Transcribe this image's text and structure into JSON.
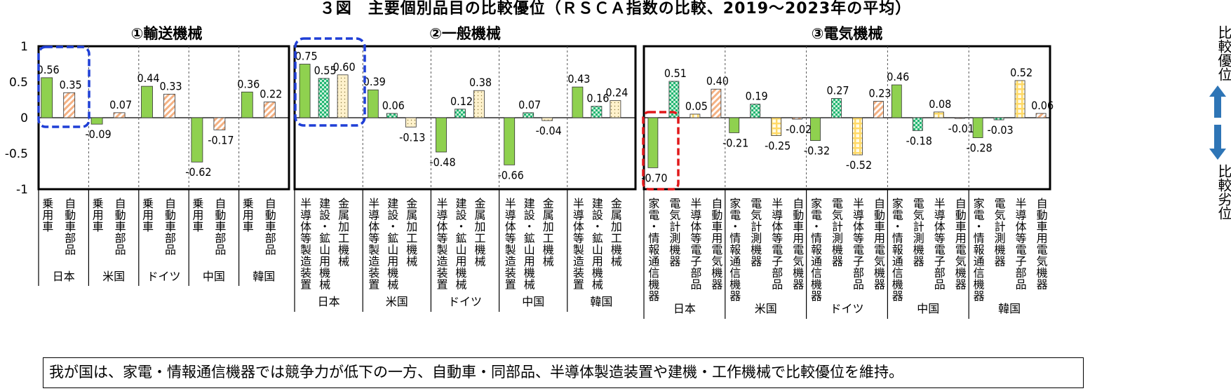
{
  "colors": {
    "green": "#8fd14f",
    "teal": "#22b573",
    "cream": "#fff2cc",
    "orange": "#f4b183",
    "yellow": "#ffd966",
    "blue_dash": "#1f3fd6",
    "red_dash": "#e0191b",
    "arrow": "#2e75b6"
  },
  "chart_data": {
    "title": "３図　主要個別品目の比較優位（ＲＳＣＡ指数の比較、2019～2023年の平均）",
    "type": "bar",
    "ylim": [
      -1,
      1
    ],
    "yticks": [
      "1",
      "0.5",
      "0",
      "-0.5",
      "-1"
    ],
    "panels": [
      {
        "title": "①輸送機械",
        "categories": [
          "乗用車",
          "自動車部品"
        ],
        "groups": [
          {
            "country": "日本",
            "values": [
              0.56,
              0.35
            ],
            "labels": [
              "0.56",
              "0.35"
            ]
          },
          {
            "country": "米国",
            "values": [
              -0.09,
              0.07
            ],
            "labels": [
              "-0.09",
              "0.07"
            ]
          },
          {
            "country": "ドイツ",
            "values": [
              0.44,
              0.33
            ],
            "labels": [
              "0.44",
              "0.33"
            ]
          },
          {
            "country": "中国",
            "values": [
              -0.62,
              -0.17
            ],
            "labels": [
              "-0.62",
              "-0.17"
            ]
          },
          {
            "country": "韓国",
            "values": [
              0.36,
              0.22
            ],
            "labels": [
              "0.36",
              "0.22"
            ]
          }
        ]
      },
      {
        "title": "②一般機械",
        "categories": [
          "半導体等製造装置",
          "建設・鉱山用機械",
          "金属加工機械"
        ],
        "groups": [
          {
            "country": "日本",
            "values": [
              0.75,
              0.55,
              0.6
            ],
            "labels": [
              "0.75",
              "0.55",
              "0.60"
            ]
          },
          {
            "country": "米国",
            "values": [
              0.39,
              0.06,
              -0.13
            ],
            "labels": [
              "0.39",
              "0.06",
              "-0.13"
            ]
          },
          {
            "country": "ドイツ",
            "values": [
              -0.48,
              0.12,
              0.38
            ],
            "labels": [
              "-0.48",
              "0.12",
              "0.38"
            ]
          },
          {
            "country": "中国",
            "values": [
              -0.66,
              0.07,
              -0.04
            ],
            "labels": [
              "-0.66",
              "0.07",
              "-0.04"
            ]
          },
          {
            "country": "韓国",
            "values": [
              0.43,
              0.16,
              0.24
            ],
            "labels": [
              "0.43",
              "0.16",
              "0.24"
            ]
          }
        ]
      },
      {
        "title": "③電気機械",
        "categories": [
          "家電・情報通信機器",
          "電気計測機器",
          "半導体等電子部品",
          "自動車用電気機器"
        ],
        "groups": [
          {
            "country": "日本",
            "values": [
              -0.7,
              0.51,
              0.05,
              0.4
            ],
            "labels": [
              "-0.70",
              "0.51",
              "0.05",
              "0.40"
            ]
          },
          {
            "country": "米国",
            "values": [
              -0.21,
              0.19,
              -0.25,
              -0.02
            ],
            "labels": [
              "-0.21",
              "0.19",
              "-0.25",
              "-0.02"
            ]
          },
          {
            "country": "ドイツ",
            "values": [
              -0.32,
              0.27,
              -0.52,
              0.23
            ],
            "labels": [
              "-0.32",
              "0.27",
              "-0.52",
              "0.23"
            ]
          },
          {
            "country": "中国",
            "values": [
              0.46,
              -0.18,
              0.08,
              -0.01
            ],
            "labels": [
              "0.46",
              "-0.18",
              "0.08",
              "-0.01"
            ]
          },
          {
            "country": "韓国",
            "values": [
              -0.28,
              -0.03,
              0.52,
              0.06
            ],
            "labels": [
              "-0.28",
              "-0.03",
              "0.52",
              "0.06"
            ]
          }
        ]
      }
    ]
  },
  "side_labels": {
    "top": "比較優位",
    "bottom": "比較劣位"
  },
  "note": "我が国は、家電・情報通信機器では競争力が低下の一方、自動車・同部品、半導体製造装置や建機・工作機械で比較優位を維持。"
}
